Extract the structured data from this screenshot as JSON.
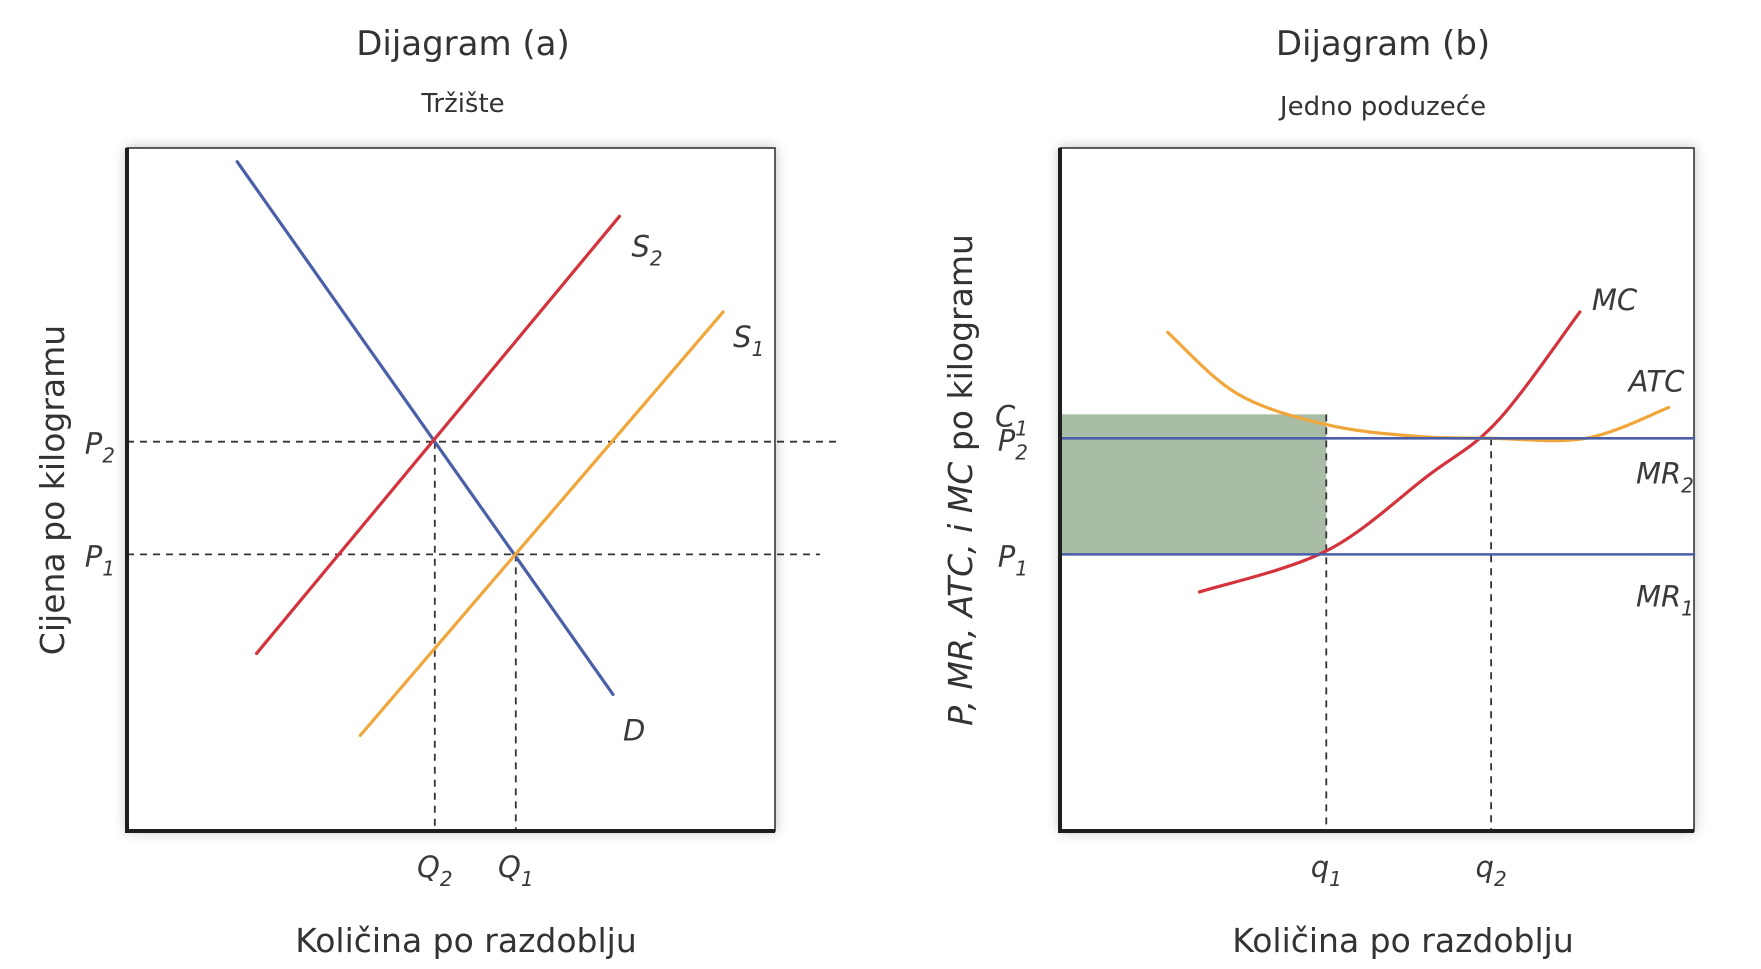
{
  "chart_data": [
    {
      "type": "line",
      "title": "Dijagram (a)",
      "subtitle": "Tržište",
      "xlabel": "Količina po razdoblju",
      "ylabel": "Cijena po kilogramu",
      "xlim": [
        0,
        10
      ],
      "ylim": [
        0,
        10
      ],
      "series": [
        {
          "name": "D",
          "sub": "",
          "color": "#4a5fa8",
          "points": [
            [
              1.7,
              9.8
            ],
            [
              7.5,
              2.0
            ]
          ]
        },
        {
          "name": "S",
          "sub": "2",
          "color": "#d4333c",
          "points": [
            [
              2.0,
              2.6
            ],
            [
              7.6,
              9.0
            ]
          ]
        },
        {
          "name": "S",
          "sub": "1",
          "color": "#f0a63a",
          "points": [
            [
              3.6,
              1.4
            ],
            [
              9.2,
              7.6
            ]
          ]
        }
      ],
      "price_marks": [
        {
          "label": "P",
          "sub": "2",
          "y": 5.7
        },
        {
          "label": "P",
          "sub": "1",
          "y": 4.05
        }
      ],
      "quantity_marks": [
        {
          "label": "Q",
          "sub": "2",
          "x": 4.75
        },
        {
          "label": "Q",
          "sub": "1",
          "x": 6.0
        }
      ]
    },
    {
      "type": "line",
      "title": "Dijagram (b)",
      "subtitle": "Jedno poduzeće",
      "xlabel": "Količina po razdoblju",
      "ylabel_parts": [
        "P, MR, ATC, i MC",
        " po kilogramu"
      ],
      "xlim": [
        0,
        10
      ],
      "ylim": [
        0,
        10
      ],
      "series": [
        {
          "name": "MC",
          "sub": "",
          "color": "#d4333c",
          "points": [
            [
              2.2,
              3.5
            ],
            [
              4.2,
              4.1
            ],
            [
              5.8,
              5.2
            ],
            [
              6.9,
              6.0
            ],
            [
              8.2,
              7.6
            ]
          ]
        },
        {
          "name": "ATC",
          "sub": "",
          "color": "#f0a63a",
          "points": [
            [
              1.7,
              7.3
            ],
            [
              2.8,
              6.4
            ],
            [
              4.2,
              5.95
            ],
            [
              5.6,
              5.78
            ],
            [
              6.8,
              5.75
            ],
            [
              8.3,
              5.75
            ],
            [
              9.6,
              6.2
            ]
          ]
        },
        {
          "name": "MR",
          "sub": "2",
          "color": "#4a5fa8",
          "points": [
            [
              0,
              5.75
            ],
            [
              10,
              5.75
            ]
          ]
        },
        {
          "name": "MR",
          "sub": "1",
          "color": "#4a5fa8",
          "points": [
            [
              0,
              4.05
            ],
            [
              10,
              4.05
            ]
          ]
        }
      ],
      "price_marks": [
        {
          "label": "C",
          "sub": "1",
          "y": 6.1
        },
        {
          "label": "P",
          "sub": "2",
          "y": 5.75
        },
        {
          "label": "P",
          "sub": "1",
          "y": 4.05
        }
      ],
      "quantity_marks": [
        {
          "label": "q",
          "sub": "1",
          "x": 4.2
        },
        {
          "label": "q",
          "sub": "2",
          "x": 6.8
        }
      ],
      "shaded_region": {
        "x": [
          0,
          4.2
        ],
        "y": [
          4.05,
          6.1
        ],
        "color": "#a9bca5"
      }
    }
  ]
}
